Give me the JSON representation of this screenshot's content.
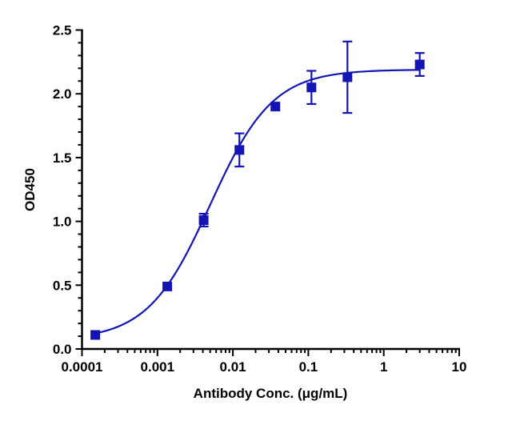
{
  "chart_data": {
    "type": "scatter",
    "title": "",
    "xlabel": "Antibody Conc. (μg/mL)",
    "ylabel": "OD450",
    "x_scale": "log",
    "xlim": [
      0.0001,
      10
    ],
    "ylim": [
      0,
      2.5
    ],
    "x_ticks": [
      "0.0001",
      "0.001",
      "0.01",
      "0.1",
      "1",
      "10"
    ],
    "y_ticks": [
      "0.0",
      "0.5",
      "1.0",
      "1.5",
      "2.0",
      "2.5"
    ],
    "grid": false,
    "legend": "none",
    "color": "#1414b4",
    "marker": "square",
    "series": [
      {
        "x": [
          0.00015,
          0.00135,
          0.0041,
          0.0122,
          0.0366,
          0.11,
          0.33,
          3.0
        ],
        "y": [
          0.11,
          0.49,
          1.01,
          1.56,
          1.9,
          2.05,
          2.13,
          2.23
        ],
        "error": [
          0,
          0.01,
          0.05,
          0.13,
          0.01,
          0.13,
          0.28,
          0.09
        ]
      }
    ],
    "fit_curve": {
      "model": "4PL",
      "bottom": 0.07,
      "top": 2.19,
      "ec50": 0.005,
      "hill": 1.05
    }
  }
}
